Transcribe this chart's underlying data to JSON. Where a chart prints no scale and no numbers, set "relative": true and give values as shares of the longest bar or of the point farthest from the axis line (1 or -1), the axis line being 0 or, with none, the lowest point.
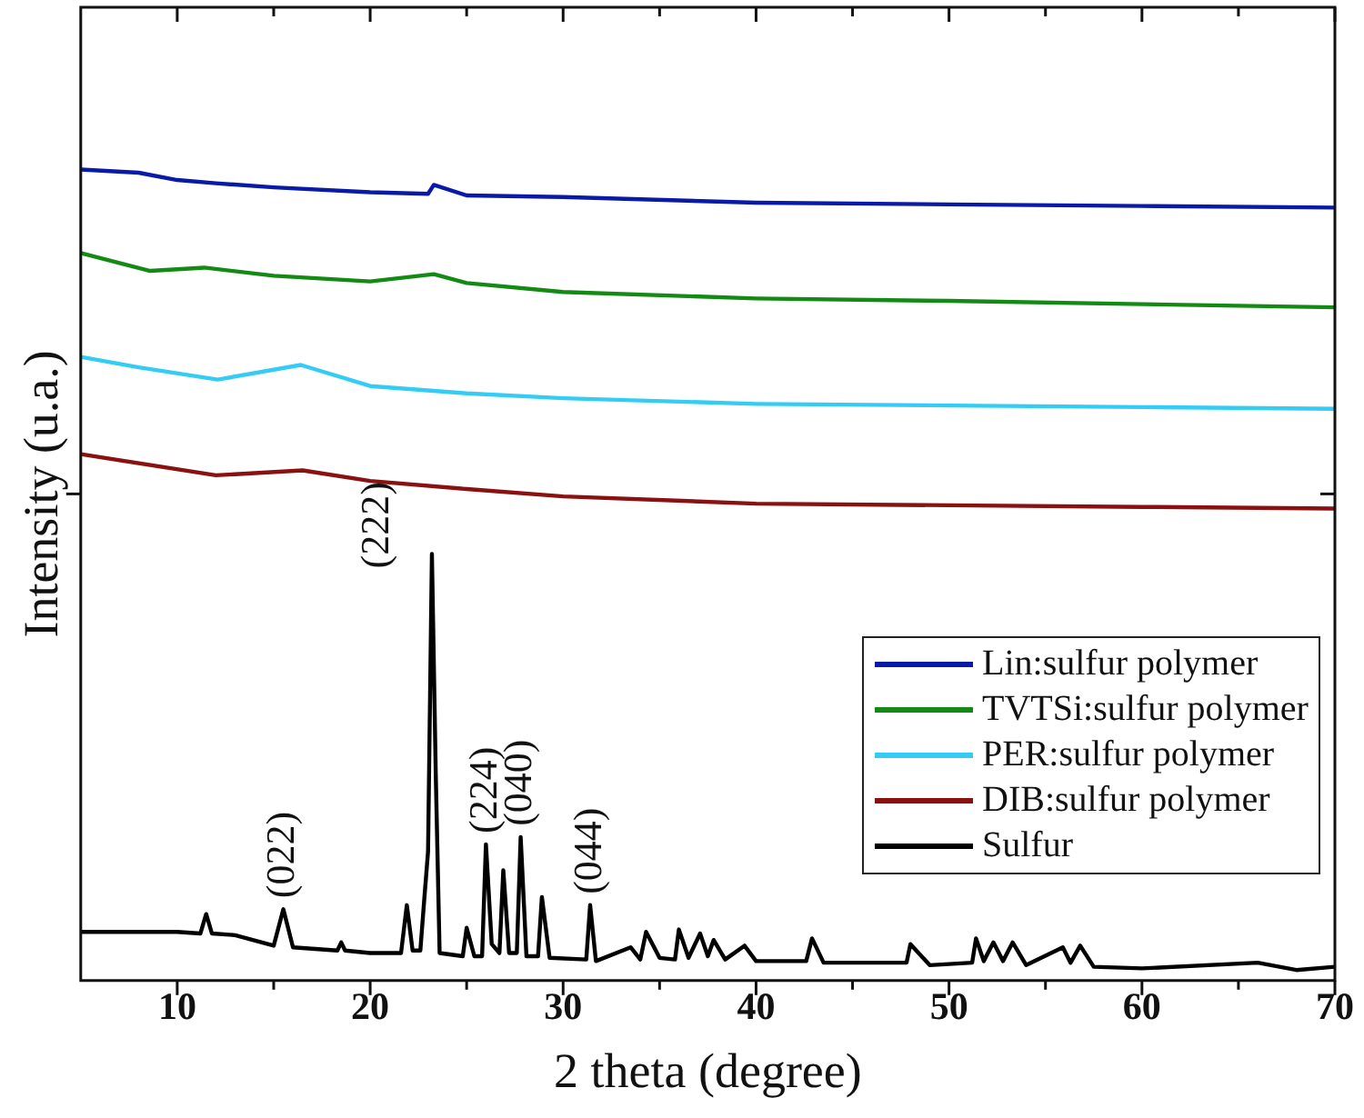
{
  "chart_data": {
    "type": "line",
    "relative": true,
    "xlabel": "2 theta (degree)",
    "ylabel": "Intensity (u.a.)",
    "xlim": [
      5,
      70
    ],
    "xticks": [
      10,
      {
        "value": 15,
        "label": null
      },
      20,
      {
        "value": 25,
        "label": null
      },
      30,
      {
        "value": 35,
        "label": null
      },
      40,
      {
        "value": 45,
        "label": null
      },
      50,
      {
        "value": 55,
        "label": null
      },
      60,
      {
        "value": 65,
        "label": null
      },
      70
    ],
    "legend": "bottom right",
    "grid": false,
    "marker": "none",
    "line_style": "solid",
    "series": [
      {
        "name": "Lin:sulfur polymer",
        "color": "#0a1aa8",
        "x": [
          5,
          8,
          10,
          12,
          15,
          20,
          23,
          23.3,
          25,
          30,
          40,
          50,
          60,
          70
        ],
        "values": [
          1.0,
          0.996,
          0.987,
          0.983,
          0.978,
          0.972,
          0.97,
          0.981,
          0.968,
          0.966,
          0.959,
          0.957,
          0.955,
          0.953
        ]
      },
      {
        "name": "TVTSi:sulfur polymer",
        "color": "#138a13",
        "x": [
          5,
          8.6,
          11.4,
          15,
          20,
          23.3,
          25,
          30,
          40,
          50,
          60,
          70
        ],
        "values": [
          0.897,
          0.875,
          0.879,
          0.869,
          0.862,
          0.871,
          0.86,
          0.849,
          0.841,
          0.838,
          0.834,
          0.83
        ]
      },
      {
        "name": "PER:sulfur polymer",
        "color": "#33ccf5",
        "x": [
          5,
          8,
          12.1,
          16.4,
          20,
          25,
          30,
          40,
          50,
          60,
          70
        ],
        "values": [
          0.769,
          0.756,
          0.741,
          0.759,
          0.733,
          0.724,
          0.718,
          0.711,
          0.709,
          0.707,
          0.705
        ]
      },
      {
        "name": "DIB:sulfur polymer",
        "color": "#8b1010",
        "x": [
          5,
          12,
          16.5,
          20,
          25,
          30,
          40,
          50,
          60,
          70
        ],
        "values": [
          0.649,
          0.623,
          0.629,
          0.616,
          0.606,
          0.597,
          0.588,
          0.586,
          0.584,
          0.582
        ]
      },
      {
        "name": "Sulfur",
        "color": "#000000",
        "x": [
          5,
          10,
          11.2,
          11.5,
          11.8,
          13,
          15,
          15.5,
          16,
          18.3,
          18.5,
          18.7,
          20,
          21.6,
          21.9,
          22.2,
          22.6,
          22.8,
          23.0,
          23.2,
          23.4,
          23.6,
          24.8,
          25,
          25.4,
          25.8,
          26,
          26.3,
          26.7,
          26.9,
          27.2,
          27.6,
          27.8,
          28.1,
          28.7,
          28.9,
          29.3,
          31.2,
          31.4,
          31.7,
          33.5,
          34.0,
          34.3,
          35,
          35.8,
          36,
          36.5,
          37.1,
          37.5,
          37.8,
          38.4,
          39.4,
          40,
          42.6,
          42.9,
          43.5,
          47.8,
          48,
          49,
          51.2,
          51.4,
          51.8,
          52.3,
          52.8,
          53.3,
          54,
          55.9,
          56.3,
          56.8,
          57.5,
          60,
          66,
          68,
          70
        ],
        "values": [
          0.06,
          0.06,
          0.058,
          0.082,
          0.058,
          0.056,
          0.043,
          0.088,
          0.041,
          0.037,
          0.047,
          0.037,
          0.034,
          0.034,
          0.093,
          0.037,
          0.037,
          0.099,
          0.159,
          0.526,
          0.254,
          0.034,
          0.03,
          0.065,
          0.03,
          0.03,
          0.168,
          0.045,
          0.034,
          0.136,
          0.034,
          0.034,
          0.177,
          0.03,
          0.03,
          0.103,
          0.028,
          0.026,
          0.093,
          0.024,
          0.041,
          0.026,
          0.06,
          0.028,
          0.026,
          0.063,
          0.028,
          0.058,
          0.03,
          0.05,
          0.026,
          0.043,
          0.024,
          0.024,
          0.052,
          0.022,
          0.022,
          0.045,
          0.019,
          0.022,
          0.052,
          0.024,
          0.047,
          0.024,
          0.047,
          0.019,
          0.041,
          0.022,
          0.043,
          0.017,
          0.015,
          0.022,
          0.013,
          0.017
        ]
      }
    ],
    "annotations": [
      {
        "text": "(022)",
        "x": 15.5,
        "y": 0.088
      },
      {
        "text": "(222)",
        "x": 23.2,
        "y": 0.526
      },
      {
        "text": "(224)",
        "x": 26,
        "y": 0.168
      },
      {
        "text": "(040)",
        "x": 27.8,
        "y": 0.177
      },
      {
        "text": "(044)",
        "x": 31.4,
        "y": 0.093
      }
    ]
  }
}
